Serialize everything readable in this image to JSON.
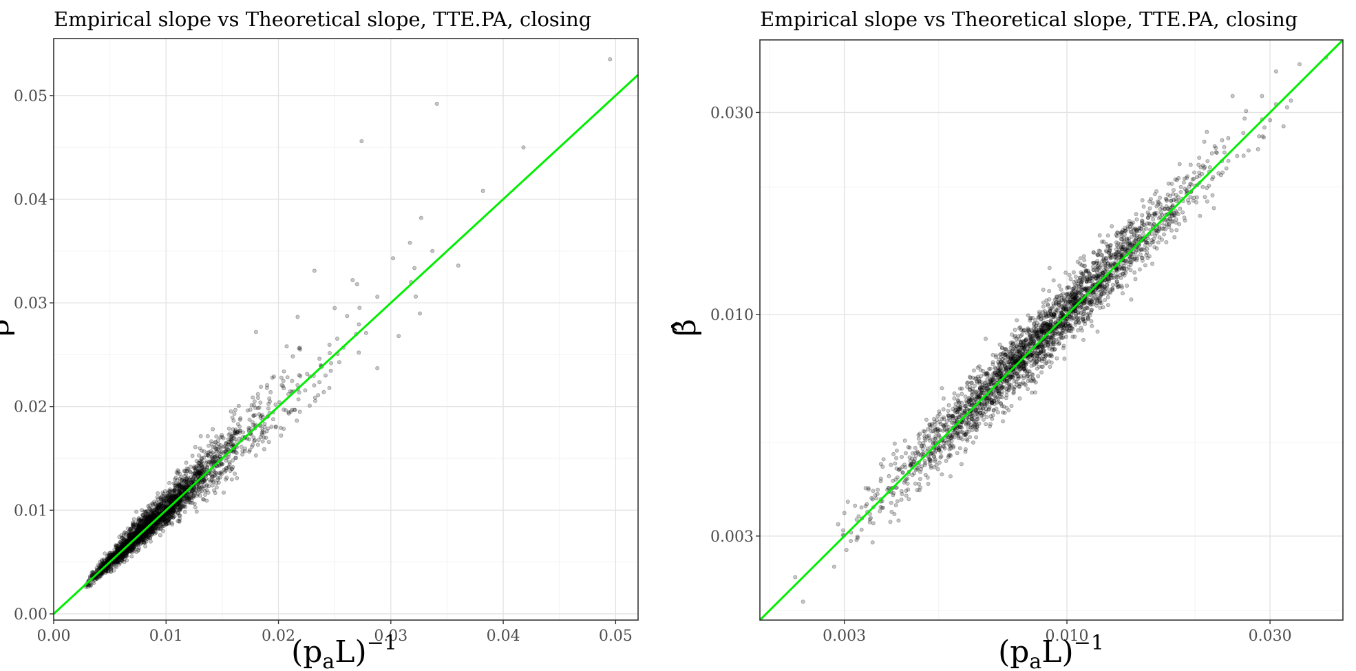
{
  "colors": {
    "points": "#000000",
    "point_opacity": 0.22,
    "fit_line": "#00ee00",
    "grid": "#e3e3e3"
  },
  "chart_data": [
    {
      "type": "scatter",
      "title": "Empirical slope vs Theoretical slope, TTE.PA, closing",
      "xlabel": "(p_a L)^-1",
      "xlabel_parts": {
        "base": "(p",
        "sub": "a",
        "mid": "L)",
        "sup": "−1"
      },
      "ylabel": "β̂",
      "xscale": "linear",
      "yscale": "linear",
      "xlim": [
        0.0,
        0.052
      ],
      "ylim": [
        -0.0006,
        0.0555
      ],
      "xticks": [
        0.0,
        0.01,
        0.02,
        0.03,
        0.04,
        0.05
      ],
      "xtick_labels": [
        "0.00",
        "0.01",
        "0.02",
        "0.03",
        "0.04",
        "0.05"
      ],
      "yticks": [
        0.0,
        0.01,
        0.02,
        0.03,
        0.04,
        0.05
      ],
      "ytick_labels": [
        "0.00",
        "0.01",
        "0.02",
        "0.03",
        "0.04",
        "0.05"
      ],
      "grid": true,
      "reference_line": {
        "slope": 1,
        "intercept": 0,
        "color": "#00ee00"
      },
      "n_points_approx": 2600,
      "points": [
        [
          0.0495,
          0.0535
        ],
        [
          0.0341,
          0.0492
        ],
        [
          0.0274,
          0.0456
        ],
        [
          0.0418,
          0.045
        ],
        [
          0.0382,
          0.0408
        ],
        [
          0.0327,
          0.0382
        ],
        [
          0.036,
          0.0336
        ],
        [
          0.0302,
          0.0343
        ],
        [
          0.0232,
          0.0331
        ],
        [
          0.0266,
          0.0322
        ],
        [
          0.027,
          0.0318
        ],
        [
          0.0288,
          0.0306
        ],
        [
          0.025,
          0.0295
        ],
        [
          0.0307,
          0.0268
        ],
        [
          0.0288,
          0.0237
        ],
        [
          0.018,
          0.0272
        ],
        [
          0.0337,
          0.035
        ],
        [
          0.0318,
          0.032
        ]
      ]
    },
    {
      "type": "scatter",
      "title": "Empirical slope vs Theoretical slope, TTE.PA, closing",
      "xlabel": "(p_a L)^-1",
      "xlabel_parts": {
        "base": "(p",
        "sub": "a",
        "mid": "L)",
        "sup": "−1"
      },
      "ylabel": "β̂",
      "xscale": "log",
      "yscale": "log",
      "xlim": [
        0.0019,
        0.0445
      ],
      "ylim": [
        0.0019,
        0.0445
      ],
      "xticks": [
        0.003,
        0.01,
        0.03
      ],
      "xtick_labels": [
        "0.003",
        "0.010",
        "0.030"
      ],
      "yticks": [
        0.003,
        0.01,
        0.03
      ],
      "ytick_labels": [
        "0.003",
        "0.010",
        "0.030"
      ],
      "grid": true,
      "reference_line": {
        "slope": 1,
        "intercept": 0,
        "color": "#00ee00"
      },
      "n_points_approx": 2600,
      "points": [
        [
          0.0406,
          0.0404
        ],
        [
          0.0352,
          0.039
        ],
        [
          0.031,
          0.0375
        ],
        [
          0.0336,
          0.032
        ],
        [
          0.029,
          0.0262
        ],
        [
          0.0245,
          0.0328
        ],
        [
          0.0023,
          0.0024
        ],
        [
          0.0024,
          0.0021
        ],
        [
          0.003,
          0.0034
        ],
        [
          0.0029,
          0.0032
        ],
        [
          0.0033,
          0.0033
        ]
      ]
    }
  ]
}
